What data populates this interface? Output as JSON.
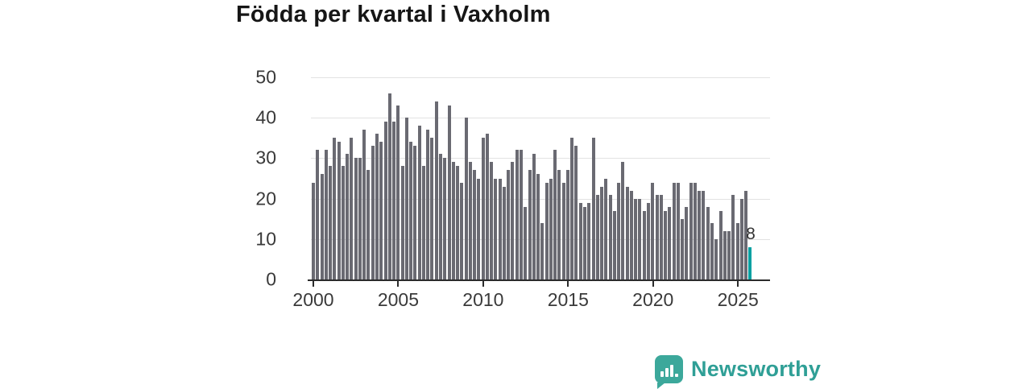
{
  "title": "Födda per kvartal i Vaxholm",
  "chart_data": {
    "type": "bar",
    "title": "Födda per kvartal i Vaxholm",
    "xlabel": "",
    "ylabel": "",
    "ylim": [
      0,
      50
    ],
    "y_tick_labels": [
      "50",
      "40",
      "30",
      "20",
      "10",
      "0"
    ],
    "x_tick_labels": [
      "2000",
      "2005",
      "2010",
      "2015",
      "2020",
      "2025"
    ],
    "grid": "horizontal-light",
    "bar_color": "#6a6a72",
    "highlight_color": "#00a0a1",
    "start_period": "2000-Q1",
    "end_period": "2025-Q4",
    "values": [
      24,
      32,
      26,
      32,
      28,
      35,
      34,
      28,
      31,
      35,
      30,
      30,
      37,
      27,
      33,
      36,
      34,
      39,
      46,
      39,
      43,
      28,
      40,
      34,
      33,
      38,
      28,
      37,
      35,
      44,
      31,
      30,
      43,
      29,
      28,
      24,
      40,
      29,
      27,
      25,
      35,
      36,
      29,
      25,
      25,
      23,
      27,
      29,
      32,
      32,
      18,
      27,
      31,
      26,
      14,
      24,
      25,
      32,
      27,
      24,
      27,
      35,
      33,
      19,
      18,
      19,
      35,
      21,
      23,
      25,
      21,
      17,
      24,
      29,
      23,
      22,
      20,
      20,
      17,
      19,
      24,
      21,
      21,
      17,
      18,
      24,
      24,
      15,
      18,
      24,
      24,
      22,
      22,
      18,
      14,
      10,
      17,
      12,
      12,
      21,
      14,
      20,
      22,
      8
    ],
    "highlight_index": 103,
    "last_value_label": "8"
  },
  "logo": {
    "text": "Newsworthy",
    "badge_color": "#3ca89b",
    "text_color": "#2f9f96",
    "icon": "bar-chart-exclamation-badge"
  }
}
